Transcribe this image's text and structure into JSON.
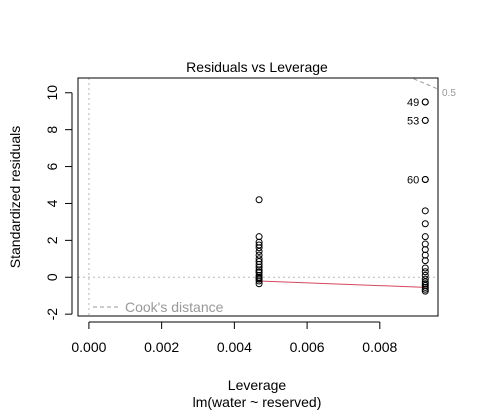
{
  "chart_data": {
    "type": "scatter",
    "title": "Residuals vs Leverage",
    "xlabel": "Leverage",
    "xsubtitle": "lm(water ~ reserved)",
    "ylabel": "Standardized residuals",
    "xlim": [
      -0.0003,
      0.0096
    ],
    "ylim": [
      -2.1,
      10.8
    ],
    "x_ticks": [
      0.0,
      0.002,
      0.004,
      0.006,
      0.008
    ],
    "x_tick_labels": [
      "0.000",
      "0.002",
      "0.004",
      "0.006",
      "0.008"
    ],
    "y_ticks": [
      -2,
      0,
      2,
      4,
      6,
      8,
      10
    ],
    "y_tick_labels": [
      "-2",
      "0",
      "2",
      "4",
      "6",
      "8",
      "10"
    ],
    "grid": false,
    "legend": {
      "label": "Cook's distance",
      "position": "bottom-left",
      "color": "#999999"
    },
    "contour_label": "0.5",
    "smoother_color": "#d2495f",
    "reference_line_color": "#b8b8b8",
    "points": {
      "leverage_low": 0.00468,
      "leverage_high": 0.00925,
      "low_group_residuals": [
        4.2,
        2.2,
        1.9,
        1.75,
        1.6,
        1.4,
        1.2,
        1.0,
        0.85,
        0.7,
        0.55,
        0.4,
        0.25,
        0.1,
        -0.05,
        -0.2,
        -0.35,
        0.0,
        0.3,
        -0.1
      ],
      "high_group_residuals": [
        9.5,
        8.5,
        5.3,
        3.6,
        2.9,
        2.2,
        1.8,
        1.5,
        1.2,
        0.9,
        0.5,
        0.3,
        0.1,
        -0.1,
        -0.25,
        -0.35,
        -0.45,
        -0.55,
        -0.65,
        -0.75
      ]
    },
    "labeled_points": [
      {
        "label": "49",
        "x": 0.00925,
        "y": 9.5
      },
      {
        "label": "53",
        "x": 0.00925,
        "y": 8.5
      },
      {
        "label": "60",
        "x": 0.00925,
        "y": 5.3
      }
    ],
    "smoother": [
      {
        "x": 0.00468,
        "y": -0.2
      },
      {
        "x": 0.00925,
        "y": -0.55
      }
    ],
    "cooks_contour": [
      {
        "x": 0.0084,
        "y": 11.2
      },
      {
        "x": 0.0096,
        "y": 10.2
      }
    ]
  }
}
